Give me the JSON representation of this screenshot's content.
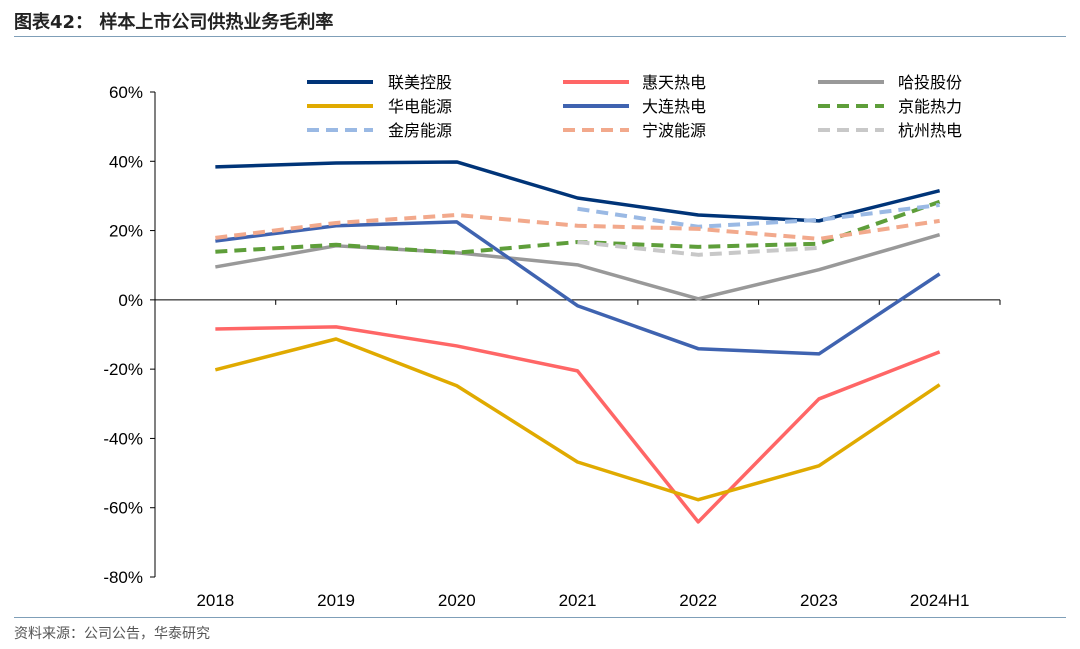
{
  "header": {
    "title": "图表42：  样本上市公司供热业务毛利率"
  },
  "footer": {
    "source": "资料来源：公司公告，华泰研究"
  },
  "chart_data": {
    "type": "line",
    "title": "",
    "xlabel": "",
    "ylabel": "",
    "categories": [
      "2018",
      "2019",
      "2020",
      "2021",
      "2022",
      "2023",
      "2024H1"
    ],
    "ylim": [
      -80,
      60
    ],
    "yticks": [
      60,
      40,
      20,
      0,
      -20,
      -40,
      -60,
      -80
    ],
    "ytick_labels": [
      "60%",
      "40%",
      "20%",
      "0%",
      "-20%",
      "-40%",
      "-60%",
      "-80%"
    ],
    "grid": false,
    "legend": "top",
    "series": [
      {
        "name": "联美控股",
        "color": "#003478",
        "dash": false,
        "values": [
          38.4,
          39.5,
          39.8,
          29.4,
          24.5,
          22.8,
          31.5
        ]
      },
      {
        "name": "惠天热电",
        "color": "#ff6666",
        "dash": false,
        "values": [
          -8.4,
          -7.8,
          -13.3,
          -20.5,
          -64.1,
          -28.6,
          -15.0
        ]
      },
      {
        "name": "哈投股份",
        "color": "#999999",
        "dash": false,
        "values": [
          9.5,
          15.6,
          13.6,
          10.1,
          0.3,
          8.7,
          18.8
        ]
      },
      {
        "name": "华电能源",
        "color": "#e0aa00",
        "dash": false,
        "values": [
          -20.2,
          -11.3,
          -24.8,
          -46.8,
          -57.7,
          -47.9,
          -24.5
        ]
      },
      {
        "name": "大连热电",
        "color": "#3f63b0",
        "dash": false,
        "values": [
          17.0,
          21.4,
          22.5,
          -1.7,
          -14.1,
          -15.6,
          7.5
        ]
      },
      {
        "name": "京能热力",
        "color": "#5e9e3a",
        "dash": true,
        "values": [
          13.9,
          15.9,
          13.6,
          16.7,
          15.3,
          16.2,
          28.3
        ]
      },
      {
        "name": "金房能源",
        "color": "#9ab9e4",
        "dash": true,
        "values": [
          null,
          null,
          null,
          26.3,
          21.1,
          23.1,
          27.4
        ]
      },
      {
        "name": "宁波能源",
        "color": "#f2a98c",
        "dash": true,
        "values": [
          17.9,
          22.2,
          24.5,
          21.4,
          20.5,
          17.6,
          22.8
        ]
      },
      {
        "name": "杭州热电",
        "color": "#c8c8c8",
        "dash": true,
        "values": [
          null,
          null,
          null,
          16.7,
          13.0,
          15.0,
          null
        ]
      }
    ]
  }
}
